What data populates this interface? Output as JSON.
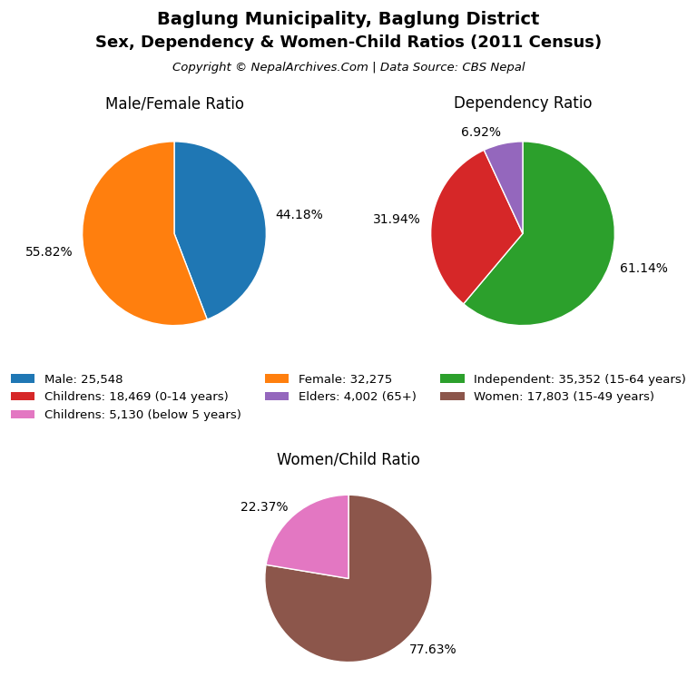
{
  "title": "Baglung Municipality, Baglung District",
  "subtitle": "Sex, Dependency & Women-Child Ratios (2011 Census)",
  "annotations": [
    "Copyright © NepalArchives.Com | Data Source: CBS Nepal"
  ],
  "legend": "center",
  "chart_data": [
    {
      "type": "pie",
      "title": "Male/Female Ratio",
      "categories": [
        "Male: 25,548",
        "Female: 32,275"
      ],
      "values": [
        44.18,
        55.82
      ],
      "value_labels": [
        "44.18%",
        "55.82%"
      ],
      "colors": [
        "#1f77b4",
        "#ff7f0e"
      ],
      "data_labels": true
    },
    {
      "type": "pie",
      "title": "Dependency Ratio",
      "categories": [
        "Independent: 35,352 (15-64 years)",
        "Childrens: 18,469 (0-14 years)",
        "Elders: 4,002 (65+)"
      ],
      "values": [
        61.14,
        31.94,
        6.92
      ],
      "value_labels": [
        "61.14%",
        "31.94%",
        "6.92%"
      ],
      "colors": [
        "#2ca02c",
        "#d62728",
        "#9467bd"
      ],
      "data_labels": true
    },
    {
      "type": "pie",
      "title": "Women/Child Ratio",
      "categories": [
        "Women: 17,803 (15-49 years)",
        "Childrens: 5,130 (below 5 years)"
      ],
      "values": [
        77.63,
        22.37
      ],
      "value_labels": [
        "77.63%",
        "22.37%"
      ],
      "colors": [
        "#8c564b",
        "#e377c2"
      ],
      "data_labels": true
    }
  ]
}
